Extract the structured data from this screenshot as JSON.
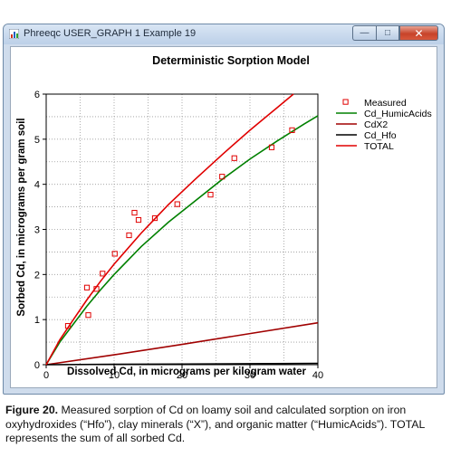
{
  "window": {
    "title": "Phreeqc USER_GRAPH 1 Example 19",
    "buttons": {
      "minimize": "—",
      "maximize": "□",
      "close": "✕"
    }
  },
  "chart_data": {
    "type": "line",
    "title": "Deterministic Sorption Model",
    "xlabel": "Dissolved Cd, in micrograms per kilogram water",
    "ylabel": "Sorbed Cd, in micrograms per gram soil",
    "xlim": [
      0,
      40
    ],
    "ylim": [
      0,
      6
    ],
    "x_ticks": [
      0,
      10,
      20,
      30,
      40
    ],
    "y_ticks": [
      0,
      1,
      2,
      3,
      4,
      5,
      6
    ],
    "grid": true,
    "legend_position": "top-right",
    "series": [
      {
        "name": "Measured",
        "kind": "scatter",
        "color": "#e00000",
        "points": [
          [
            3.2,
            0.86
          ],
          [
            6.2,
            1.1
          ],
          [
            6.0,
            1.71
          ],
          [
            7.4,
            1.68
          ],
          [
            8.3,
            2.02
          ],
          [
            10.1,
            2.46
          ],
          [
            12.2,
            2.87
          ],
          [
            13.0,
            3.37
          ],
          [
            13.6,
            3.21
          ],
          [
            16.0,
            3.25
          ],
          [
            19.3,
            3.56
          ],
          [
            24.2,
            3.77
          ],
          [
            25.9,
            4.17
          ],
          [
            27.7,
            4.58
          ],
          [
            33.2,
            4.82
          ],
          [
            36.2,
            5.2
          ]
        ]
      },
      {
        "name": "Cd_HumicAcids",
        "kind": "line",
        "color": "#008000",
        "points": [
          [
            0,
            0
          ],
          [
            2,
            0.5
          ],
          [
            4,
            0.9
          ],
          [
            6,
            1.3
          ],
          [
            8,
            1.66
          ],
          [
            10,
            2.0
          ],
          [
            14,
            2.62
          ],
          [
            18,
            3.16
          ],
          [
            22,
            3.64
          ],
          [
            26,
            4.12
          ],
          [
            30,
            4.56
          ],
          [
            34,
            4.96
          ],
          [
            38,
            5.34
          ],
          [
            40,
            5.52
          ]
        ]
      },
      {
        "name": "CdX2",
        "kind": "line",
        "color": "#a00000",
        "points": [
          [
            0,
            0
          ],
          [
            10,
            0.22
          ],
          [
            20,
            0.45
          ],
          [
            30,
            0.69
          ],
          [
            40,
            0.93
          ]
        ]
      },
      {
        "name": "Cd_Hfo",
        "kind": "line",
        "color": "#000000",
        "points": [
          [
            0,
            0
          ],
          [
            10,
            0.008
          ],
          [
            20,
            0.015
          ],
          [
            30,
            0.022
          ],
          [
            40,
            0.03
          ]
        ]
      },
      {
        "name": "TOTAL",
        "kind": "line",
        "color": "#e00000",
        "points": [
          [
            0,
            0
          ],
          [
            2,
            0.55
          ],
          [
            4,
            1.0
          ],
          [
            6,
            1.44
          ],
          [
            8,
            1.85
          ],
          [
            10,
            2.23
          ],
          [
            14,
            2.92
          ],
          [
            18,
            3.55
          ],
          [
            22,
            4.12
          ],
          [
            26,
            4.67
          ],
          [
            30,
            5.2
          ],
          [
            34,
            5.7
          ],
          [
            36.4,
            6.0
          ]
        ]
      }
    ]
  },
  "caption": {
    "label": "Figure 20.",
    "text": " Measured sorption of Cd on loamy soil and calculated sorption on iron oxyhydroxides (“Hfo”), clay minerals (“X”), and organic matter (“HumicAcids”). TOTAL represents the sum of all sorbed Cd."
  }
}
